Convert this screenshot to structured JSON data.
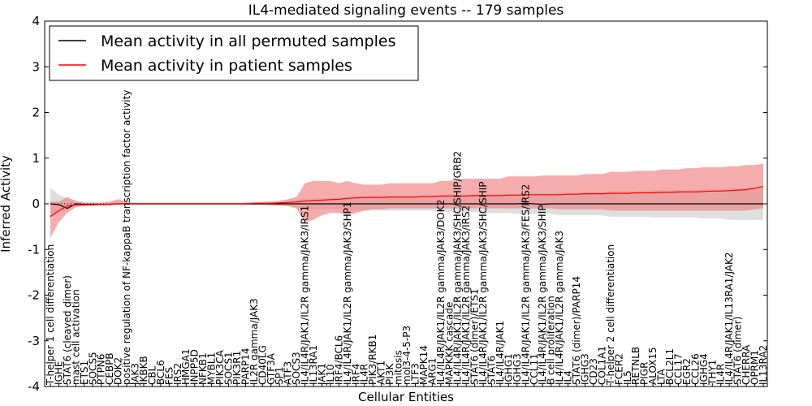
{
  "chart_data": {
    "type": "line",
    "title": "IL4-mediated signaling events -- 179 samples",
    "xlabel": "Cellular Entities",
    "ylabel": "Inferred Activity",
    "ylim": [
      -4,
      4
    ],
    "yticks": [
      -4,
      -3,
      -2,
      -1,
      0,
      1,
      2,
      3,
      4
    ],
    "grid": false,
    "legend": {
      "position": "top-left",
      "entries": [
        {
          "name": "Mean activity in all permuted samples",
          "color": "#000000"
        },
        {
          "name": "Mean activity in patient samples",
          "color": "#ff0000"
        }
      ]
    },
    "colors": {
      "permuted_line": "#000000",
      "patient_line": "#ff0000",
      "permuted_band": "#c8c8c8",
      "patient_band": "#f08080"
    },
    "entities": [
      "T-helper 1 cell differentiation",
      "IGHE",
      "STAT6 (cleaved dimer)",
      "mast cell activation",
      "ETS1",
      "SOCS5",
      "PTPN6",
      "CEBPB",
      "DOK2",
      "positive regulation of NF-kappaB transcription factor activity",
      "JAK3",
      "IKBKB",
      "CBL",
      "BCL6",
      "FES",
      "IRS2",
      "HMGA1",
      "INPP5D",
      "NFKB1",
      "MYBL1",
      "PIK3CA",
      "SOCS1",
      "PIK3R1",
      "PARP14",
      "IL2R gamma/JAK3",
      "CD40LG",
      "GTF3A",
      "SP1",
      "ATF3",
      "SOCS3",
      "IL4/IL4R/JAK1/IL2R gamma/JAK3/IRS1",
      "IL13RA1",
      "JAK1",
      "IL10",
      "IRF4/BCL6",
      "IL4/IL4R/JAK1/IL2R gamma/JAK3/SHP1",
      "IRF4",
      "IL4R",
      "PIK3/RKB1",
      "AKT1",
      "PI3K",
      "mitosis",
      "mol3-4-5-P3",
      "LTF3",
      "MAPK14",
      "ARG1",
      "IL4/IL4R/JAK1/IL2R gamma/JAK3/DOK2",
      "MAPKKK cascade",
      "IL4/IL4R/JAK1/IL2R gamma/JAK3/SHC/SHIP/GRB2",
      "IL4/IL4R/JAK1/IL2R gamma/JAK3/IRS2",
      "STAT6 (dimer)/ETS1",
      "IL4/IL4R/JAK1/IL2R gamma/JAK3/SHC/SHIP",
      "STAT6",
      "IL4/IL4R/JAK1",
      "IGHG1",
      "IGHG3",
      "IL4/IL4R/JAK1/IL2R gamma/JAK3/FES/IRS2",
      "CCL11",
      "IL4/IL4R/JAK1/IL2R gamma/JAK3/SHIP",
      "B cell proliferation",
      "IL4/IL4R/JAK1/IL2R gamma/JAK3",
      "IL4",
      "STAT6 (dimer)/PARP14",
      "IGHG3",
      "CD23",
      "COL1A1",
      "T-helper 2 cell differentiation",
      "FCER2",
      "IL5",
      "RETNLB",
      "PIGR",
      "ALOX15",
      "LTA",
      "BCL2L1",
      "CCL17",
      "EGR2",
      "CCL26",
      "IGHG4",
      "THY1",
      "IL4R",
      "IL4/IL4R/JAK1/IL13RA1/JAK2",
      "STAT6 (dimer)",
      "CHERRA",
      "OPRM1",
      "IL13RA2"
    ],
    "series": [
      {
        "name": "Mean activity in all permuted samples",
        "values": [
          0.0,
          -0.02,
          -0.1,
          0.0,
          -0.01,
          -0.01,
          -0.01,
          -0.01,
          0.0,
          0.0,
          0.0,
          0.0,
          0.0,
          0.0,
          0.0,
          0.0,
          0.0,
          0.0,
          0.0,
          0.0,
          0.0,
          0.0,
          0.0,
          0.0,
          0.0,
          0.0,
          0.0,
          0.0,
          0.0,
          0.0,
          0.0,
          0.0,
          0.0,
          0.0,
          0.0,
          0.0,
          0.0,
          0.0,
          0.0,
          0.0,
          0.0,
          0.0,
          0.0,
          0.0,
          0.0,
          0.0,
          0.0,
          0.0,
          0.0,
          0.0,
          0.0,
          0.0,
          0.0,
          0.0,
          0.0,
          0.0,
          0.01,
          0.0,
          -0.01,
          0.0,
          0.0,
          0.0,
          0.0,
          0.0,
          0.0,
          0.0,
          0.0,
          0.0,
          0.0,
          0.0,
          0.0,
          0.0,
          0.0,
          0.0,
          0.0,
          0.0,
          0.0,
          0.0,
          0.0,
          0.0,
          0.0,
          0.0,
          0.0,
          0.0,
          0.0
        ],
        "lower": [
          -0.3,
          -0.2,
          -0.15,
          -0.08,
          -0.05,
          -0.04,
          -0.03,
          -0.03,
          -0.02,
          -0.02,
          -0.02,
          -0.02,
          -0.02,
          -0.02,
          -0.02,
          -0.02,
          -0.02,
          -0.02,
          -0.02,
          -0.02,
          -0.02,
          -0.02,
          -0.02,
          -0.03,
          -0.03,
          -0.03,
          -0.04,
          -0.04,
          -0.05,
          -0.08,
          -0.12,
          -0.12,
          -0.12,
          -0.12,
          -0.12,
          -0.15,
          -0.15,
          -0.15,
          -0.15,
          -0.15,
          -0.15,
          -0.15,
          -0.15,
          -0.15,
          -0.15,
          -0.15,
          -0.18,
          -0.18,
          -0.18,
          -0.18,
          -0.18,
          -0.2,
          -0.2,
          -0.2,
          -0.2,
          -0.22,
          -0.22,
          -0.22,
          -0.22,
          -0.22,
          -0.25,
          -0.25,
          -0.25,
          -0.25,
          -0.25,
          -0.25,
          -0.28,
          -0.28,
          -0.28,
          -0.28,
          -0.28,
          -0.3,
          -0.3,
          -0.3,
          -0.3,
          -0.3,
          -0.3,
          -0.32,
          -0.32,
          -0.32,
          -0.35,
          -0.35,
          -0.35,
          -0.35,
          -0.35
        ],
        "upper": [
          0.35,
          0.2,
          0.12,
          0.08,
          0.05,
          0.04,
          0.03,
          0.03,
          0.02,
          0.02,
          0.02,
          0.02,
          0.02,
          0.02,
          0.02,
          0.02,
          0.02,
          0.02,
          0.02,
          0.02,
          0.02,
          0.02,
          0.02,
          0.03,
          0.03,
          0.03,
          0.04,
          0.04,
          0.05,
          0.08,
          0.12,
          0.12,
          0.12,
          0.12,
          0.12,
          0.15,
          0.15,
          0.15,
          0.15,
          0.15,
          0.15,
          0.15,
          0.15,
          0.15,
          0.15,
          0.15,
          0.18,
          0.18,
          0.18,
          0.18,
          0.18,
          0.2,
          0.2,
          0.2,
          0.2,
          0.22,
          0.22,
          0.22,
          0.22,
          0.22,
          0.25,
          0.25,
          0.25,
          0.25,
          0.25,
          0.25,
          0.28,
          0.28,
          0.28,
          0.28,
          0.28,
          0.3,
          0.3,
          0.3,
          0.3,
          0.3,
          0.3,
          0.32,
          0.32,
          0.32,
          0.35,
          0.35,
          0.35,
          0.35,
          0.35
        ]
      },
      {
        "name": "Mean activity in patient samples",
        "values": [
          -0.28,
          -0.15,
          -0.05,
          -0.02,
          -0.02,
          -0.02,
          -0.01,
          -0.01,
          0.0,
          0.0,
          0.0,
          0.0,
          0.0,
          0.0,
          0.0,
          0.0,
          0.0,
          0.0,
          0.0,
          0.0,
          0.0,
          0.0,
          0.0,
          0.0,
          0.01,
          0.01,
          0.01,
          0.02,
          0.03,
          0.04,
          0.06,
          0.07,
          0.08,
          0.09,
          0.1,
          0.12,
          0.13,
          0.14,
          0.14,
          0.14,
          0.15,
          0.15,
          0.15,
          0.15,
          0.16,
          0.16,
          0.17,
          0.17,
          0.17,
          0.17,
          0.18,
          0.18,
          0.18,
          0.18,
          0.19,
          0.19,
          0.2,
          0.2,
          0.2,
          0.2,
          0.2,
          0.21,
          0.21,
          0.22,
          0.22,
          0.22,
          0.23,
          0.23,
          0.23,
          0.24,
          0.24,
          0.24,
          0.25,
          0.25,
          0.26,
          0.26,
          0.26,
          0.27,
          0.28,
          0.28,
          0.29,
          0.3,
          0.31,
          0.34,
          0.38
        ],
        "lower": [
          -0.75,
          -0.4,
          -0.2,
          -0.07,
          -0.05,
          -0.04,
          -0.03,
          -0.03,
          -0.02,
          -0.02,
          -0.02,
          -0.02,
          -0.02,
          -0.02,
          -0.02,
          -0.02,
          -0.02,
          -0.02,
          -0.02,
          -0.02,
          -0.02,
          -0.02,
          -0.02,
          -0.02,
          -0.02,
          -0.02,
          -0.03,
          -0.04,
          -0.05,
          -0.1,
          -0.4,
          -0.35,
          -0.25,
          -0.2,
          -0.2,
          -0.25,
          -0.2,
          -0.15,
          -0.12,
          -0.12,
          -0.1,
          -0.1,
          -0.1,
          -0.1,
          -0.1,
          -0.1,
          -0.1,
          -0.1,
          -0.1,
          -0.1,
          -0.1,
          -0.1,
          -0.1,
          -0.1,
          -0.1,
          -0.1,
          -0.1,
          -0.1,
          -0.1,
          -0.1,
          -0.12,
          -0.12,
          -0.12,
          -0.12,
          -0.12,
          -0.12,
          -0.15,
          -0.15,
          -0.15,
          -0.15,
          -0.15,
          -0.15,
          -0.15,
          -0.15,
          -0.15,
          -0.15,
          -0.15,
          -0.15,
          -0.15,
          -0.15,
          -0.15,
          -0.15,
          -0.15,
          -0.12,
          -0.1
        ],
        "upper": [
          0.05,
          0.05,
          0.15,
          0.05,
          0.02,
          0.02,
          0.02,
          0.05,
          0.1,
          0.05,
          0.02,
          0.02,
          0.02,
          0.02,
          0.02,
          0.02,
          0.02,
          0.02,
          0.02,
          0.02,
          0.02,
          0.02,
          0.02,
          0.02,
          0.03,
          0.04,
          0.05,
          0.07,
          0.1,
          0.15,
          0.45,
          0.5,
          0.5,
          0.5,
          0.45,
          0.5,
          0.45,
          0.42,
          0.42,
          0.42,
          0.45,
          0.45,
          0.45,
          0.45,
          0.45,
          0.45,
          0.5,
          0.5,
          0.55,
          0.55,
          0.55,
          0.55,
          0.55,
          0.55,
          0.6,
          0.6,
          0.6,
          0.6,
          0.62,
          0.62,
          0.62,
          0.62,
          0.62,
          0.65,
          0.65,
          0.65,
          0.7,
          0.7,
          0.7,
          0.72,
          0.72,
          0.72,
          0.75,
          0.75,
          0.75,
          0.78,
          0.78,
          0.8,
          0.8,
          0.8,
          0.82,
          0.82,
          0.85,
          0.85,
          0.88
        ]
      }
    ]
  }
}
